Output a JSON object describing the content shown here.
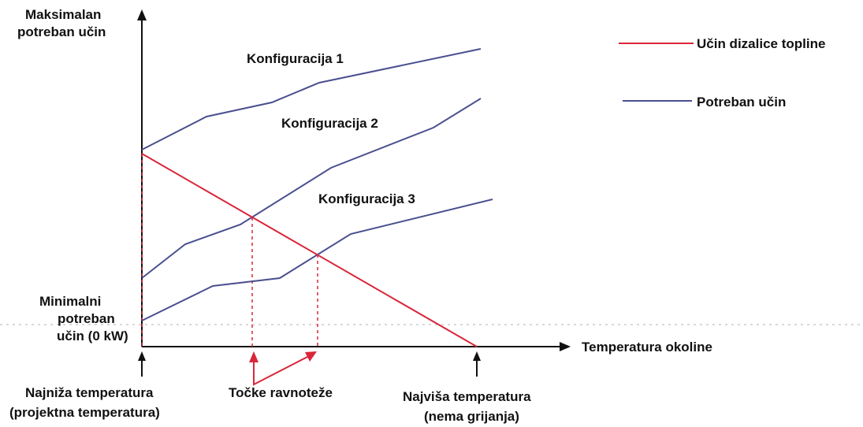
{
  "y_axis": {
    "top_label": [
      "Maksimalan",
      "potreban učin"
    ],
    "bottom_label": [
      "Minimalni",
      "potreban",
      "učin (0 kW)"
    ]
  },
  "x_axis": {
    "label": "Temperatura okoline"
  },
  "curves": [
    "Konfiguracija 1",
    "Konfiguracija 2",
    "Konfiguracija 3"
  ],
  "annotations": {
    "lowest": [
      "Najniža temperatura",
      "(projektna temperatura)"
    ],
    "balance": "Točke ravnoteže",
    "highest": [
      "Najviša temperatura",
      "(nema grijanja)"
    ]
  },
  "legend": [
    "Učin dizalice topline",
    "Potreban učin"
  ]
}
